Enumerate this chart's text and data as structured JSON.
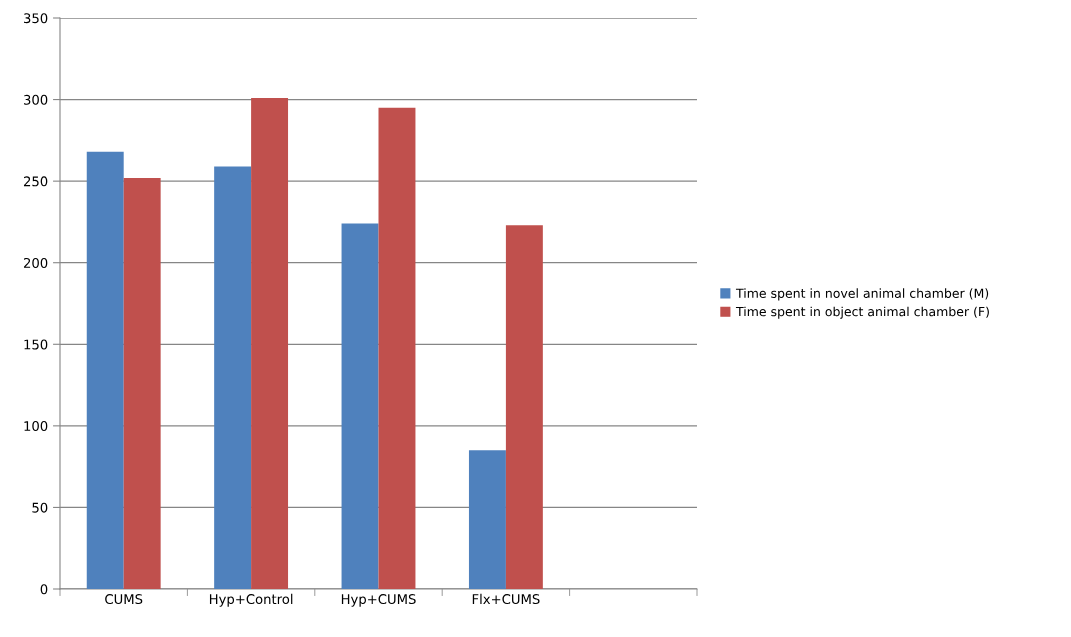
{
  "chart_data": {
    "type": "bar",
    "categories": [
      "CUMS",
      "Hyp+Control",
      "Hyp+CUMS",
      "Flx+CUMS",
      null
    ],
    "series": [
      {
        "name": "Time spent in novel animal chamber (M)",
        "color": "#4f81bd",
        "values": [
          268,
          259,
          224,
          85,
          null
        ]
      },
      {
        "name": "Time spent in object animal chamber (F)",
        "color": "#c0504d",
        "values": [
          252,
          301,
          295,
          223,
          null
        ]
      }
    ],
    "ylim": [
      0,
      350
    ],
    "yticks": [
      0,
      50,
      100,
      150,
      200,
      250,
      300,
      350
    ],
    "grid": "y",
    "legend": "right"
  }
}
